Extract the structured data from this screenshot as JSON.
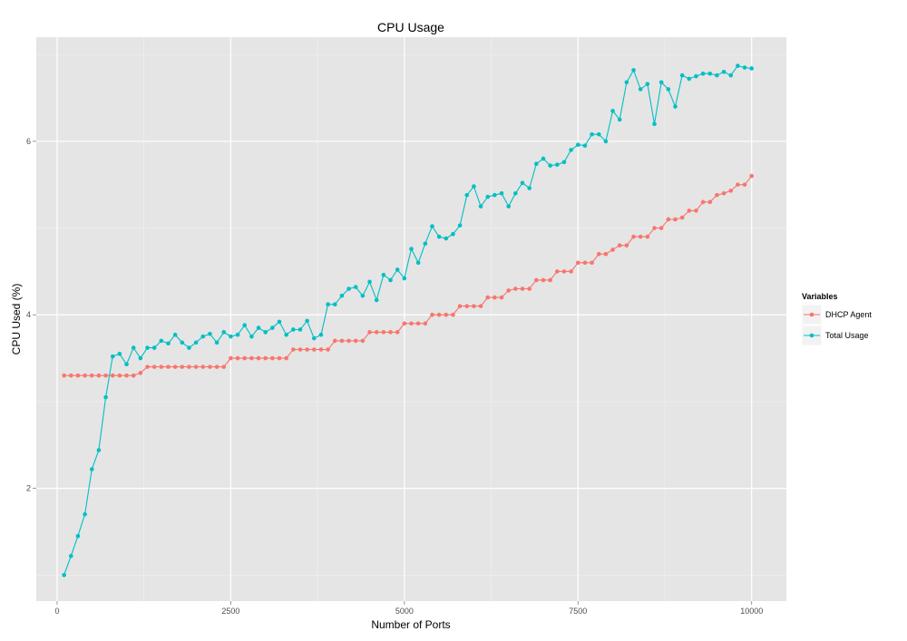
{
  "chart_data": {
    "type": "line",
    "title": "CPU Usage",
    "xlabel": "Number of Ports",
    "ylabel": "CPU Used (%)",
    "xlim": [
      -300,
      10500
    ],
    "ylim": [
      0.7,
      7.2
    ],
    "x_ticks": [
      0,
      2500,
      5000,
      7500,
      10000
    ],
    "y_ticks": [
      2,
      4,
      6
    ],
    "grid": true,
    "legend": {
      "title": "Variables",
      "position": "right"
    },
    "x": [
      100,
      200,
      300,
      400,
      500,
      600,
      700,
      800,
      900,
      1000,
      1100,
      1200,
      1300,
      1400,
      1500,
      1600,
      1700,
      1800,
      1900,
      2000,
      2100,
      2200,
      2300,
      2400,
      2500,
      2600,
      2700,
      2800,
      2900,
      3000,
      3100,
      3200,
      3300,
      3400,
      3500,
      3600,
      3700,
      3800,
      3900,
      4000,
      4100,
      4200,
      4300,
      4400,
      4500,
      4600,
      4700,
      4800,
      4900,
      5000,
      5100,
      5200,
      5300,
      5400,
      5500,
      5600,
      5700,
      5800,
      5900,
      6000,
      6100,
      6200,
      6300,
      6400,
      6500,
      6600,
      6700,
      6800,
      6900,
      7000,
      7100,
      7200,
      7300,
      7400,
      7500,
      7600,
      7700,
      7800,
      7900,
      8000,
      8100,
      8200,
      8300,
      8400,
      8500,
      8600,
      8700,
      8800,
      8900,
      9000,
      9100,
      9200,
      9300,
      9400,
      9500,
      9600,
      9700,
      9800,
      9900,
      10000
    ],
    "series": [
      {
        "name": "DHCP Agent",
        "color": "#F8766D",
        "values": [
          3.3,
          3.3,
          3.3,
          3.3,
          3.3,
          3.3,
          3.3,
          3.3,
          3.3,
          3.3,
          3.3,
          3.33,
          3.4,
          3.4,
          3.4,
          3.4,
          3.4,
          3.4,
          3.4,
          3.4,
          3.4,
          3.4,
          3.4,
          3.4,
          3.5,
          3.5,
          3.5,
          3.5,
          3.5,
          3.5,
          3.5,
          3.5,
          3.5,
          3.6,
          3.6,
          3.6,
          3.6,
          3.6,
          3.6,
          3.7,
          3.7,
          3.7,
          3.7,
          3.7,
          3.8,
          3.8,
          3.8,
          3.8,
          3.8,
          3.9,
          3.9,
          3.9,
          3.9,
          4.0,
          4.0,
          4.0,
          4.0,
          4.1,
          4.1,
          4.1,
          4.1,
          4.2,
          4.2,
          4.2,
          4.28,
          4.3,
          4.3,
          4.3,
          4.4,
          4.4,
          4.4,
          4.5,
          4.5,
          4.5,
          4.6,
          4.6,
          4.6,
          4.7,
          4.7,
          4.75,
          4.8,
          4.8,
          4.9,
          4.9,
          4.9,
          5.0,
          5.0,
          5.1,
          5.1,
          5.12,
          5.2,
          5.2,
          5.3,
          5.3,
          5.38,
          5.4,
          5.43,
          5.5,
          5.5,
          5.6
        ]
      },
      {
        "name": "Total Usage",
        "color": "#00BFC4",
        "values": [
          1.0,
          1.22,
          1.45,
          1.7,
          2.22,
          2.44,
          3.05,
          3.52,
          3.55,
          3.43,
          3.62,
          3.5,
          3.62,
          3.62,
          3.7,
          3.67,
          3.77,
          3.68,
          3.62,
          3.68,
          3.75,
          3.78,
          3.68,
          3.8,
          3.75,
          3.77,
          3.88,
          3.75,
          3.85,
          3.8,
          3.85,
          3.92,
          3.77,
          3.83,
          3.83,
          3.93,
          3.73,
          3.77,
          4.12,
          4.12,
          4.22,
          4.3,
          4.32,
          4.22,
          4.38,
          4.17,
          4.46,
          4.4,
          4.52,
          4.42,
          4.76,
          4.6,
          4.82,
          5.02,
          4.9,
          4.88,
          4.93,
          5.03,
          5.38,
          5.48,
          5.25,
          5.36,
          5.38,
          5.4,
          5.25,
          5.4,
          5.52,
          5.46,
          5.74,
          5.8,
          5.72,
          5.73,
          5.76,
          5.9,
          5.96,
          5.95,
          6.08,
          6.08,
          6.0,
          6.35,
          6.25,
          6.68,
          6.82,
          6.6,
          6.66,
          6.2,
          6.68,
          6.6,
          6.4,
          6.76,
          6.72,
          6.75,
          6.78,
          6.78,
          6.76,
          6.8,
          6.76,
          6.87,
          6.85,
          6.84
        ]
      }
    ]
  }
}
